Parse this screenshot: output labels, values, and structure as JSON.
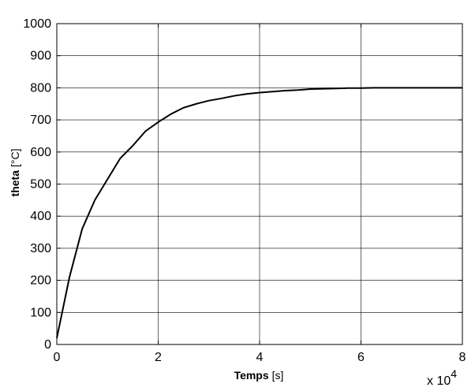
{
  "chart_data": {
    "type": "line",
    "title": "",
    "xlabel_bold": "Temps",
    "xlabel_unit": "[s]",
    "ylabel_bold": "theta",
    "ylabel_unit": "[°C]",
    "x_multiplier_label": "x 10",
    "x_multiplier_exponent": "4",
    "xlim": [
      0,
      80000
    ],
    "ylim": [
      0,
      1000
    ],
    "x_ticks": [
      0,
      20000,
      40000,
      60000,
      80000
    ],
    "x_tick_labels": [
      "0",
      "2",
      "4",
      "6",
      "8"
    ],
    "y_ticks": [
      0,
      100,
      200,
      300,
      400,
      500,
      600,
      700,
      800,
      900,
      1000
    ],
    "y_tick_labels": [
      "0",
      "100",
      "200",
      "300",
      "400",
      "500",
      "600",
      "700",
      "800",
      "900",
      "1000"
    ],
    "grid": true,
    "line_color": "#000000",
    "series": [
      {
        "x": [
          0,
          2500,
          5000,
          7500,
          10000,
          12500,
          15000,
          17500,
          20000,
          22500,
          25000,
          27500,
          30000,
          32500,
          35000,
          37500,
          40000,
          42500,
          45000,
          47500,
          50000,
          52500,
          55000,
          57500,
          60000,
          62500,
          65000,
          67500,
          70000,
          72500,
          75000,
          77500,
          80000
        ],
        "y": [
          20,
          210,
          360,
          450,
          515,
          580,
          620,
          665,
          693,
          718,
          738,
          750,
          760,
          767,
          775,
          781,
          785,
          788,
          791,
          793,
          796,
          797,
          798,
          799,
          799,
          800,
          800,
          800,
          800,
          800,
          800,
          800,
          800
        ]
      }
    ]
  }
}
